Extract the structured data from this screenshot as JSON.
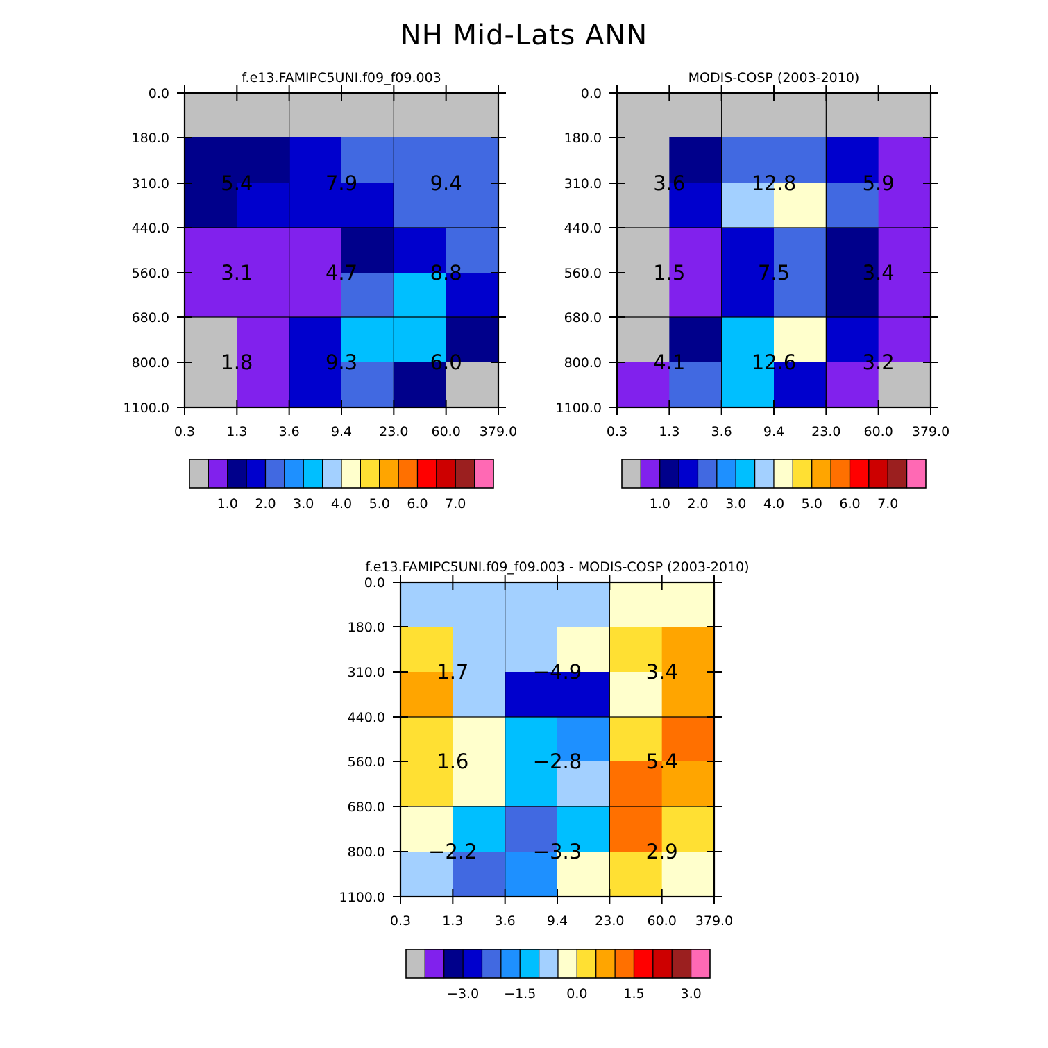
{
  "title": "NH Mid-Lats ANN",
  "palette": [
    "#c0c0c0",
    "#8121ed",
    "#00008b",
    "#0000cd",
    "#4169e1",
    "#1e90ff",
    "#00bfff",
    "#a3d0ff",
    "#ffffcc",
    "#ffe033",
    "#ffa500",
    "#ff7000",
    "#ff0000",
    "#cd0000",
    "#9b1f1f",
    "#ff69b4"
  ],
  "chart_data": [
    {
      "type": "heatmap",
      "id": "model",
      "title": "f.e13.FAMIPC5UNI.f09_f09.003",
      "xticks": [
        "0.3",
        "1.3",
        "3.6",
        "9.4",
        "23.0",
        "60.0",
        "379.0"
      ],
      "yticks": [
        "0.0",
        "180.0",
        "310.0",
        "440.0",
        "560.0",
        "680.0",
        "800.0",
        "1100.0"
      ],
      "cells": [
        [
          0,
          0,
          0,
          0,
          0,
          0
        ],
        [
          2,
          2,
          3,
          4,
          4,
          4
        ],
        [
          2,
          3,
          3,
          3,
          4,
          4
        ],
        [
          1,
          1,
          1,
          2,
          3,
          4
        ],
        [
          1,
          1,
          1,
          4,
          6,
          3
        ],
        [
          0,
          1,
          3,
          6,
          6,
          2
        ],
        [
          0,
          1,
          3,
          4,
          2,
          0
        ]
      ],
      "box_labels": [
        [
          "5.4",
          "7.9",
          "9.4"
        ],
        [
          "3.1",
          "4.7",
          "8.8"
        ],
        [
          "1.8",
          "9.3",
          "6.0"
        ]
      ],
      "colorbar_labels": [
        "1.0",
        "2.0",
        "3.0",
        "4.0",
        "5.0",
        "6.0",
        "7.0"
      ]
    },
    {
      "type": "heatmap",
      "id": "obs",
      "title": "MODIS-COSP (2003-2010)",
      "xticks": [
        "0.3",
        "1.3",
        "3.6",
        "9.4",
        "23.0",
        "60.0",
        "379.0"
      ],
      "yticks": [
        "0.0",
        "180.0",
        "310.0",
        "440.0",
        "560.0",
        "680.0",
        "800.0",
        "1100.0"
      ],
      "cells": [
        [
          0,
          0,
          0,
          0,
          0,
          0
        ],
        [
          0,
          2,
          4,
          4,
          3,
          1
        ],
        [
          0,
          3,
          7,
          8,
          4,
          1
        ],
        [
          0,
          1,
          3,
          4,
          2,
          1
        ],
        [
          0,
          1,
          3,
          4,
          2,
          1
        ],
        [
          0,
          2,
          6,
          8,
          3,
          1
        ],
        [
          1,
          4,
          6,
          3,
          1,
          0
        ]
      ],
      "box_labels": [
        [
          "3.6",
          "12.8",
          "5.9"
        ],
        [
          "1.5",
          "7.5",
          "3.4"
        ],
        [
          "4.1",
          "12.6",
          "3.2"
        ]
      ],
      "colorbar_labels": [
        "1.0",
        "2.0",
        "3.0",
        "4.0",
        "5.0",
        "6.0",
        "7.0"
      ]
    },
    {
      "type": "heatmap",
      "id": "diff",
      "title": "f.e13.FAMIPC5UNI.f09_f09.003 - MODIS-COSP (2003-2010)",
      "xticks": [
        "0.3",
        "1.3",
        "3.6",
        "9.4",
        "23.0",
        "60.0",
        "379.0"
      ],
      "yticks": [
        "0.0",
        "180.0",
        "310.0",
        "440.0",
        "560.0",
        "680.0",
        "800.0",
        "1100.0"
      ],
      "cells": [
        [
          7,
          7,
          7,
          7,
          8,
          8
        ],
        [
          9,
          7,
          7,
          8,
          9,
          10
        ],
        [
          10,
          7,
          3,
          3,
          8,
          10
        ],
        [
          9,
          8,
          6,
          5,
          9,
          11
        ],
        [
          9,
          8,
          6,
          7,
          11,
          10
        ],
        [
          8,
          6,
          4,
          6,
          11,
          9
        ],
        [
          7,
          4,
          5,
          8,
          9,
          8
        ]
      ],
      "box_labels": [
        [
          "1.7",
          "-4.9",
          "3.4"
        ],
        [
          "1.6",
          "-2.8",
          "5.4"
        ],
        [
          "-2.2",
          "-3.3",
          "2.9"
        ]
      ],
      "colorbar_labels": [
        "-3.0",
        "-1.5",
        "0.0",
        "1.5",
        "3.0"
      ]
    }
  ]
}
